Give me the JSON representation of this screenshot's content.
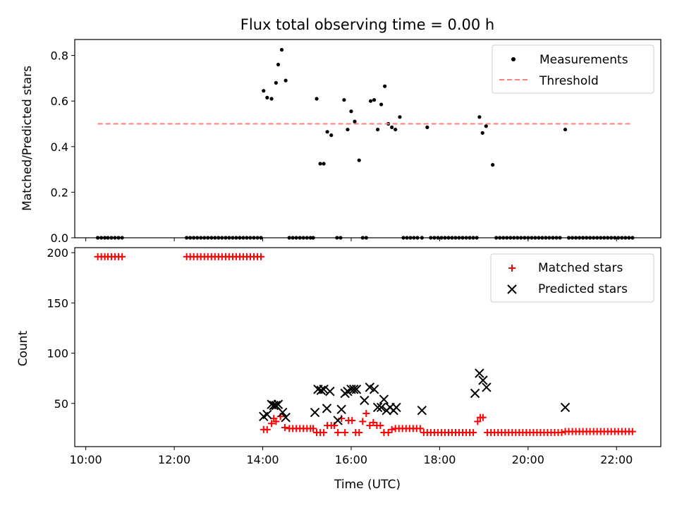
{
  "chart_data": [
    {
      "type": "scatter",
      "title": "Flux total observing time = 0.00 h",
      "xlabel": "",
      "ylabel": "Matched/Predicted stars",
      "xlim": [
        9.75,
        23.0
      ],
      "ylim": [
        0.0,
        0.87
      ],
      "y_ticks": [
        0.0,
        0.2,
        0.4,
        0.6,
        0.8
      ],
      "y_tick_labels": [
        "0.0",
        "0.2",
        "0.4",
        "0.6",
        "0.8"
      ],
      "x_ticks": [
        10,
        12,
        14,
        16,
        18,
        20,
        22
      ],
      "legend_position": "top-right",
      "series": [
        {
          "name": "Measurements",
          "kind": "points",
          "color": "#000000",
          "x": [
            10.27,
            10.35,
            10.43,
            10.5,
            10.58,
            10.66,
            10.74,
            10.82,
            12.28,
            12.36,
            12.44,
            12.52,
            12.6,
            12.68,
            12.76,
            12.84,
            12.92,
            13.0,
            13.08,
            13.16,
            13.24,
            13.32,
            13.4,
            13.48,
            13.56,
            13.64,
            13.72,
            13.8,
            13.88,
            13.96,
            14.02,
            14.1,
            14.2,
            14.3,
            14.35,
            14.43,
            14.52,
            14.6,
            14.68,
            14.76,
            14.84,
            14.92,
            15.0,
            15.08,
            15.14,
            15.22,
            15.3,
            15.38,
            15.46,
            15.55,
            15.68,
            15.76,
            15.84,
            15.92,
            16.0,
            16.08,
            16.18,
            16.26,
            16.34,
            16.44,
            16.52,
            16.6,
            16.68,
            16.76,
            16.84,
            16.92,
            17.0,
            17.1,
            17.18,
            17.26,
            17.34,
            17.42,
            17.5,
            17.6,
            17.72,
            17.8,
            17.88,
            17.96,
            18.04,
            18.12,
            18.2,
            18.28,
            18.36,
            18.44,
            18.52,
            18.6,
            18.68,
            18.76,
            18.84,
            18.9,
            18.97,
            19.05,
            19.2,
            19.28,
            19.36,
            19.44,
            19.52,
            19.6,
            19.68,
            19.76,
            19.84,
            19.92,
            20.0,
            20.08,
            20.16,
            20.24,
            20.32,
            20.4,
            20.48,
            20.56,
            20.64,
            20.72,
            20.84,
            20.92,
            21.0,
            21.08,
            21.16,
            21.24,
            21.32,
            21.4,
            21.48,
            21.56,
            21.64,
            21.72,
            21.8,
            21.88,
            21.96,
            22.04,
            22.12,
            22.2,
            22.28,
            22.36
          ],
          "y": [
            0,
            0,
            0,
            0,
            0,
            0,
            0,
            0,
            0,
            0,
            0,
            0,
            0,
            0,
            0,
            0,
            0,
            0,
            0,
            0,
            0,
            0,
            0,
            0,
            0,
            0,
            0,
            0,
            0,
            0,
            0.645,
            0.615,
            0.61,
            0.68,
            0.76,
            0.825,
            0.69,
            0,
            0,
            0,
            0,
            0,
            0,
            0,
            0,
            0.61,
            0.325,
            0.325,
            0.465,
            0.45,
            0,
            0,
            0.605,
            0.475,
            0.555,
            0.51,
            0.34,
            0,
            0,
            0.6,
            0.605,
            0.475,
            0.585,
            0.665,
            0.5,
            0.485,
            0.475,
            0.53,
            0,
            0,
            0,
            0,
            0,
            0,
            0.485,
            0,
            0,
            0,
            0,
            0,
            0,
            0,
            0,
            0,
            0,
            0,
            0,
            0,
            0,
            0.53,
            0.46,
            0.49,
            0.32,
            0,
            0,
            0,
            0,
            0,
            0,
            0,
            0,
            0,
            0,
            0,
            0,
            0,
            0,
            0,
            0,
            0,
            0,
            0,
            0.475,
            0,
            0,
            0,
            0,
            0,
            0,
            0,
            0,
            0,
            0,
            0,
            0,
            0,
            0,
            0,
            0,
            0,
            0,
            0
          ]
        },
        {
          "name": "Threshold",
          "kind": "dashed-line",
          "color": "#ff7f7f",
          "x": [
            10.27,
            22.36
          ],
          "y": [
            0.5,
            0.5
          ]
        }
      ]
    },
    {
      "type": "scatter",
      "title": "",
      "xlabel": "Time (UTC)",
      "ylabel": "Count",
      "xlim": [
        9.75,
        23.0
      ],
      "ylim": [
        7,
        205
      ],
      "y_ticks": [
        50,
        100,
        150,
        200
      ],
      "y_tick_labels": [
        "50",
        "100",
        "150",
        "200"
      ],
      "x_ticks": [
        10,
        12,
        14,
        16,
        18,
        20,
        22
      ],
      "x_tick_labels": [
        "10:00",
        "12:00",
        "14:00",
        "16:00",
        "18:00",
        "20:00",
        "22:00"
      ],
      "legend_position": "top-right",
      "series": [
        {
          "name": "Matched stars",
          "marker": "plus",
          "color": "#ff0000",
          "x": [
            10.27,
            10.35,
            10.43,
            10.5,
            10.58,
            10.66,
            10.74,
            10.82,
            12.28,
            12.36,
            12.44,
            12.52,
            12.6,
            12.68,
            12.76,
            12.84,
            12.92,
            13.0,
            13.08,
            13.16,
            13.24,
            13.32,
            13.4,
            13.48,
            13.56,
            13.64,
            13.72,
            13.8,
            13.88,
            13.96,
            14.02,
            14.1,
            14.2,
            14.25,
            14.3,
            14.4,
            14.5,
            14.6,
            14.68,
            14.76,
            14.84,
            14.92,
            15.0,
            15.08,
            15.14,
            15.22,
            15.3,
            15.38,
            15.46,
            15.55,
            15.62,
            15.7,
            15.78,
            15.86,
            15.94,
            16.02,
            16.1,
            16.18,
            16.26,
            16.34,
            16.42,
            16.5,
            16.58,
            16.66,
            16.74,
            16.84,
            16.92,
            17.0,
            17.08,
            17.16,
            17.24,
            17.32,
            17.4,
            17.48,
            17.56,
            17.64,
            17.72,
            17.8,
            17.88,
            17.96,
            18.04,
            18.12,
            18.2,
            18.28,
            18.36,
            18.44,
            18.52,
            18.6,
            18.68,
            18.76,
            18.86,
            18.92,
            18.98,
            19.08,
            19.16,
            19.24,
            19.32,
            19.4,
            19.48,
            19.56,
            19.64,
            19.72,
            19.8,
            19.88,
            19.96,
            20.04,
            20.12,
            20.2,
            20.28,
            20.36,
            20.44,
            20.52,
            20.6,
            20.68,
            20.76,
            20.84,
            20.92,
            21.0,
            21.08,
            21.16,
            21.24,
            21.32,
            21.4,
            21.48,
            21.56,
            21.64,
            21.72,
            21.8,
            21.88,
            21.96,
            22.04,
            22.12,
            22.2,
            22.28,
            22.36
          ],
          "y": [
            196,
            196,
            196,
            196,
            196,
            196,
            196,
            196,
            196,
            196,
            196,
            196,
            196,
            196,
            196,
            196,
            196,
            196,
            196,
            196,
            196,
            196,
            196,
            196,
            196,
            196,
            196,
            196,
            196,
            196,
            24,
            24,
            30,
            35,
            32,
            37,
            26,
            25,
            25,
            25,
            25,
            25,
            25,
            25,
            25,
            21,
            21,
            21,
            28,
            28,
            28,
            21,
            35,
            21,
            33,
            33,
            21,
            21,
            32,
            40,
            28,
            31,
            28,
            28,
            21,
            21,
            24,
            25,
            25,
            25,
            25,
            25,
            25,
            25,
            25,
            21,
            21,
            21,
            21,
            21,
            21,
            21,
            21,
            21,
            21,
            21,
            21,
            21,
            21,
            21,
            32,
            36,
            36,
            21,
            21,
            21,
            21,
            21,
            21,
            21,
            21,
            21,
            21,
            21,
            21,
            21,
            21,
            21,
            21,
            21,
            21,
            21,
            21,
            21,
            21,
            22,
            22,
            22,
            22,
            22,
            22,
            22,
            22,
            22,
            22,
            22,
            22,
            22,
            22,
            22,
            22,
            22,
            22,
            22,
            22
          ]
        },
        {
          "name": "Predicted stars",
          "marker": "x",
          "color": "#000000",
          "x": [
            14.02,
            14.1,
            14.2,
            14.25,
            14.3,
            14.35,
            14.45,
            14.52,
            15.18,
            15.25,
            15.32,
            15.38,
            15.45,
            15.52,
            15.7,
            15.78,
            15.86,
            15.92,
            16.0,
            16.06,
            16.12,
            16.3,
            16.42,
            16.52,
            16.6,
            16.68,
            16.74,
            16.8,
            16.88,
            16.96,
            17.02,
            17.6,
            18.8,
            18.9,
            18.98,
            19.06,
            20.84
          ],
          "y": [
            37,
            39,
            49,
            48,
            48,
            49,
            41,
            36,
            41,
            64,
            63,
            64,
            45,
            62,
            33,
            44,
            60,
            62,
            64,
            64,
            64,
            53,
            66,
            64,
            46,
            46,
            54,
            43,
            46,
            43,
            46,
            43,
            60,
            80,
            73,
            66,
            46
          ]
        }
      ]
    }
  ]
}
